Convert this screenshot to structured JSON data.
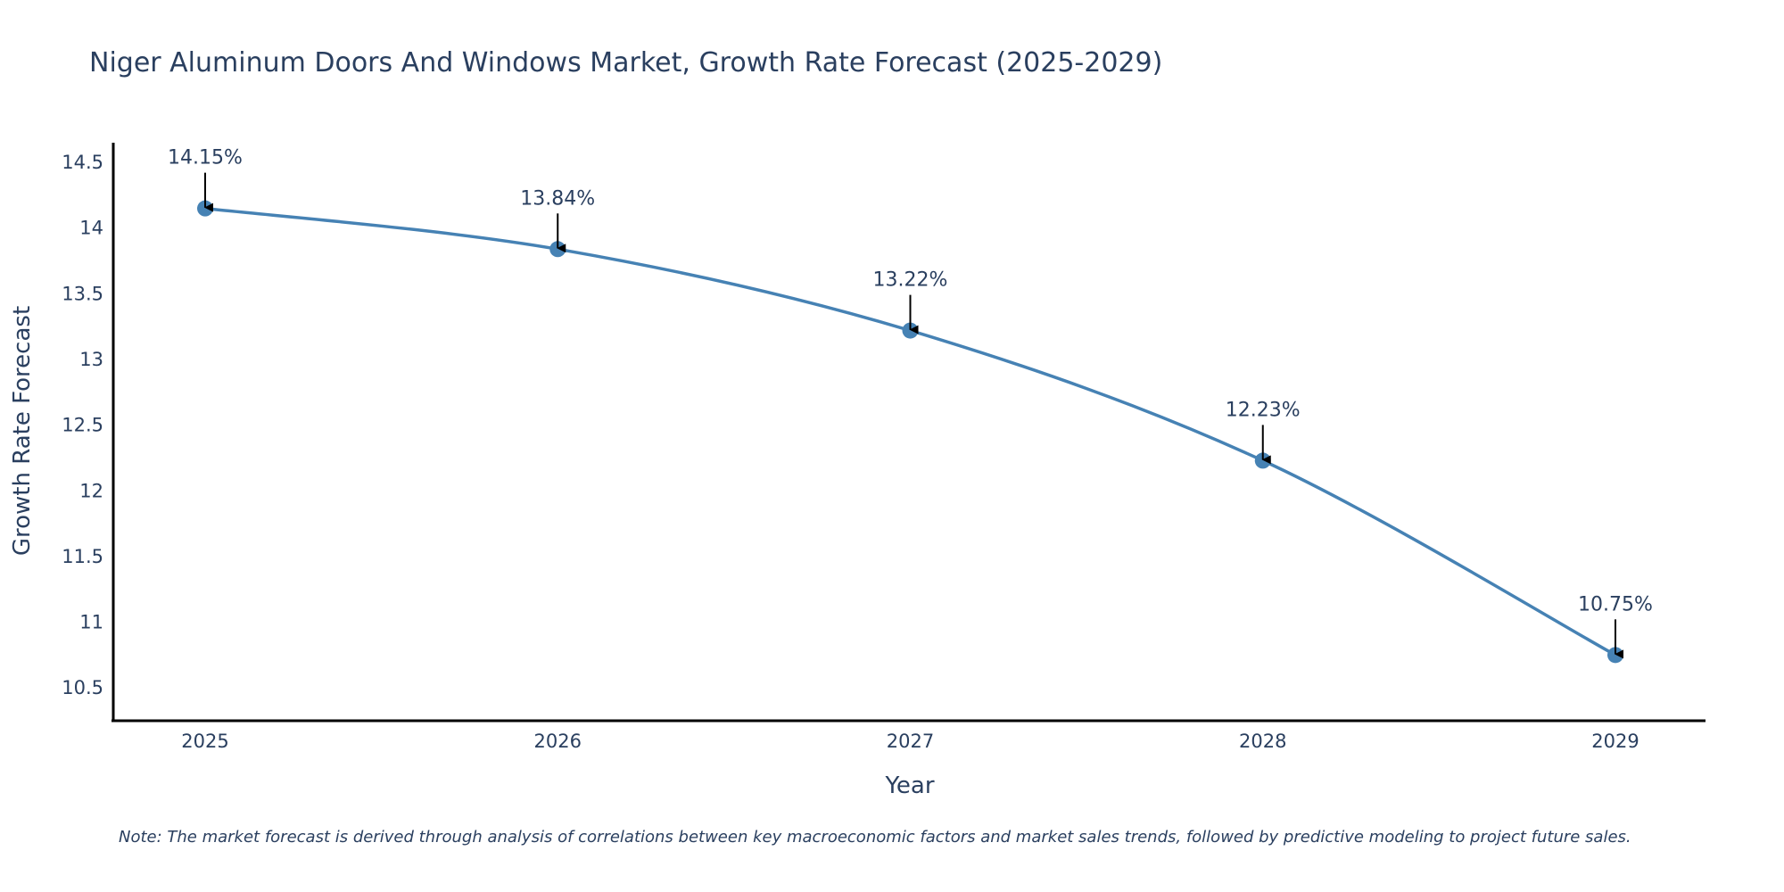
{
  "chart_data": {
    "type": "line",
    "title": "Niger Aluminum Doors And Windows Market, Growth Rate Forecast (2025-2029)",
    "xlabel": "Year",
    "ylabel": "Growth Rate Forecast",
    "x": [
      "2025",
      "2026",
      "2027",
      "2028",
      "2029"
    ],
    "series": [
      {
        "name": "Growth Rate Forecast",
        "values": [
          14.15,
          13.84,
          13.22,
          12.23,
          10.75
        ],
        "labels": [
          "14.15%",
          "13.84%",
          "13.22%",
          "12.23%",
          "10.75%"
        ],
        "color": "#4682b4"
      }
    ],
    "ylim": [
      10.25,
      14.65
    ],
    "yticks": [
      10.5,
      11,
      11.5,
      12,
      12.5,
      13,
      13.5,
      14,
      14.5
    ],
    "ytick_labels": [
      "10.5",
      "11",
      "11.5",
      "12",
      "12.5",
      "13",
      "13.5",
      "14",
      "14.5"
    ],
    "grid": false,
    "line_shape": "spline",
    "annotation_style": "arrow"
  },
  "note": "Note: The market forecast is derived through analysis of correlations between key macroeconomic factors and market sales trends, followed by predictive modeling to project future sales.",
  "colors": {
    "text": "#2a3f5f",
    "axis": "#000000",
    "line": "#4682b4",
    "arrow": "#000000"
  }
}
